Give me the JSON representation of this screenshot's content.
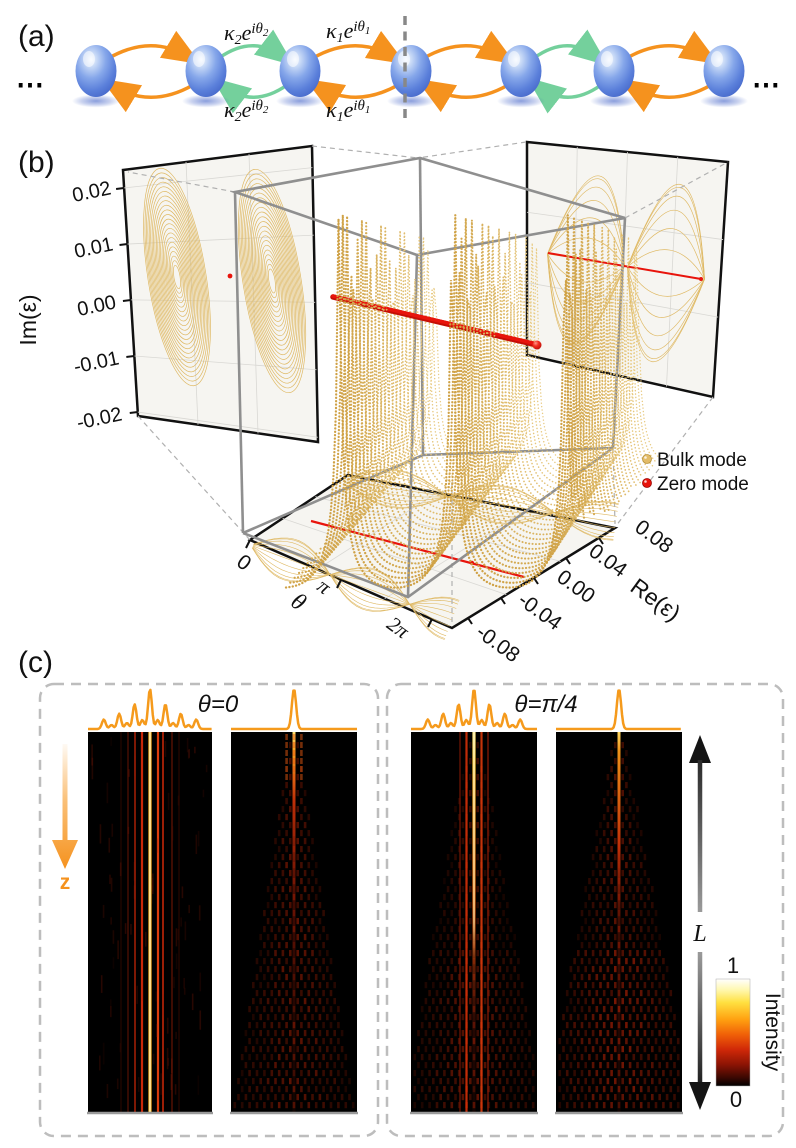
{
  "colors": {
    "gold": "#DFB964",
    "gold_front": "#CFA145",
    "gold_back": "#E9CC85",
    "red": "#E8140C",
    "orange": "#F5921E",
    "green": "#74D09C",
    "cube_gray": "#8F8F8F",
    "plane_bg": "#F6F5F1"
  },
  "panel_a": {
    "label": "(a)",
    "ellipsis": "⋯",
    "couplings": {
      "kappa2": {
        "base": "κ",
        "sub": "2",
        "mid": "e",
        "sup": "iθ",
        "sup_sub": "2"
      },
      "kappa1": {
        "base": "κ",
        "sub": "1",
        "mid": "e",
        "sup": "iθ",
        "sup_sub": "1"
      }
    }
  },
  "panel_b": {
    "label": "(b)",
    "im_axis": {
      "label": "Im(ε)",
      "ticks": [
        "0.02",
        "0.01",
        "0.00",
        "-0.01",
        "-0.02"
      ]
    },
    "theta_axis": {
      "label": "θ",
      "ticks": [
        "0",
        "π",
        "2π"
      ]
    },
    "re_axis": {
      "label": "Re(ε)",
      "ticks": [
        "0.08",
        "0.04",
        "0.00",
        "-0.04",
        "-0.08"
      ]
    },
    "legend": {
      "bulk": {
        "label": "Bulk mode",
        "color": "#E3BC68"
      },
      "zero": {
        "label": "Zero mode",
        "color": "#E8140C"
      }
    }
  },
  "panel_c": {
    "label": "(c)",
    "group1_title": "θ=0",
    "group2_title": "θ=π/4",
    "z_label": "z",
    "length_label": "L",
    "colorbar": {
      "max": "1",
      "min": "0",
      "title": "Intensity"
    }
  }
}
